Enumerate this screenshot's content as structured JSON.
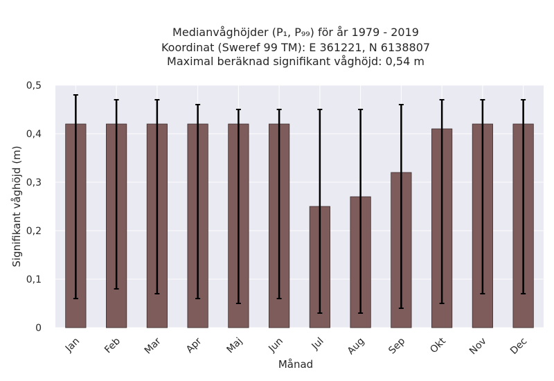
{
  "chart_data": {
    "type": "bar",
    "title_lines": [
      "Medianvåghöjder (P₁, P₉₉) för år 1979 - 2019",
      "Koordinat (Sweref 99 TM): E 361221, N 6138807",
      "Maximal beräknad signifikant våghöjd: 0,54 m"
    ],
    "xlabel": "Månad",
    "ylabel": "Signifikant våghöjd (m)",
    "categories": [
      "Jan",
      "Feb",
      "Mar",
      "Apr",
      "Maj",
      "Jun",
      "Jul",
      "Aug",
      "Sep",
      "Okt",
      "Nov",
      "Dec"
    ],
    "series": [
      {
        "values": [
          0.42,
          0.42,
          0.42,
          0.42,
          0.42,
          0.42,
          0.25,
          0.27,
          0.32,
          0.41,
          0.42,
          0.42
        ],
        "error_low": [
          0.06,
          0.08,
          0.07,
          0.06,
          0.05,
          0.06,
          0.03,
          0.03,
          0.04,
          0.05,
          0.07,
          0.07
        ],
        "error_high": [
          0.48,
          0.47,
          0.47,
          0.46,
          0.45,
          0.45,
          0.45,
          0.45,
          0.46,
          0.47,
          0.47,
          0.47
        ]
      }
    ],
    "ylim": [
      0,
      0.5
    ],
    "yticks": [
      0,
      0.1,
      0.2,
      0.3,
      0.4,
      0.5
    ],
    "ytick_labels": [
      "0",
      "0,1",
      "0,2",
      "0,3",
      "0,4",
      "0,5"
    ],
    "grid": true,
    "colors": {
      "bar": "#7f5c5c",
      "bar_edge": "#3a2a2a",
      "error": "#000000",
      "background": "#eaeaf2",
      "grid": "#ffffff"
    }
  }
}
